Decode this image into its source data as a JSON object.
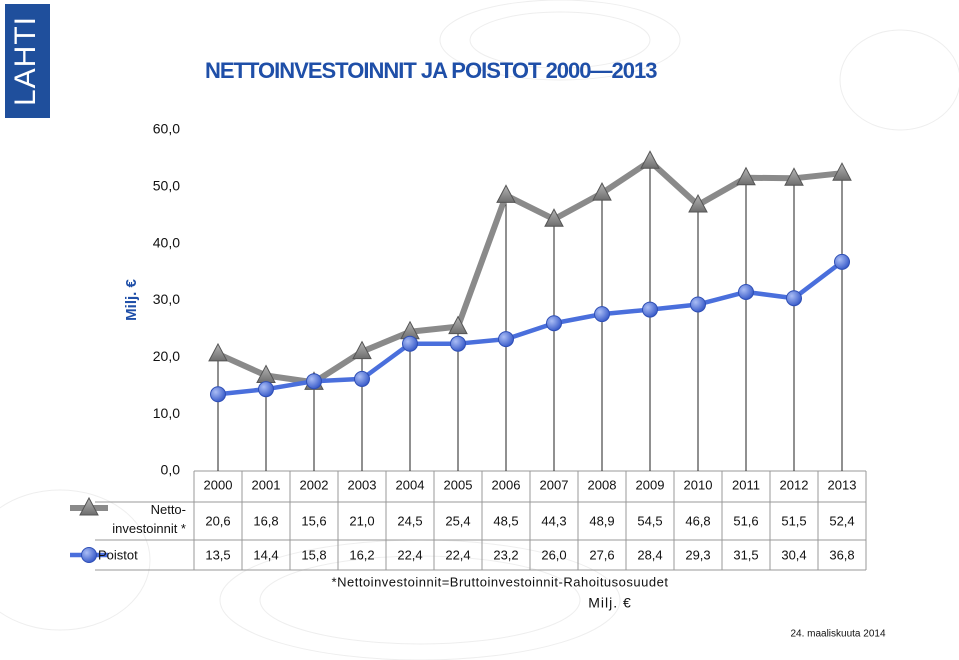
{
  "logo": "LAHTI",
  "date": "24. maaliskuuta 2014",
  "chart_data": {
    "type": "line",
    "title": "NETTOINVESTOINNIT JA POISTOT 2000—2013",
    "y_label": "Milj. €",
    "categories": [
      "2000",
      "2001",
      "2002",
      "2003",
      "2004",
      "2005",
      "2006",
      "2007",
      "2008",
      "2009",
      "2010",
      "2011",
      "2012",
      "2013"
    ],
    "series": [
      {
        "name": "Netto-investoinnit *",
        "color": "#8a8a8a",
        "marker": "triangle",
        "values": [
          20.6,
          16.8,
          15.6,
          21.0,
          24.5,
          25.4,
          48.5,
          44.3,
          48.9,
          54.5,
          46.8,
          51.6,
          51.5,
          52.4
        ],
        "value_labels": [
          "20,6",
          "16,8",
          "15,6",
          "21,0",
          "24,5",
          "25,4",
          "48,5",
          "44,3",
          "48,9",
          "54,5",
          "46,8",
          "51,6",
          "51,5",
          "52,4"
        ]
      },
      {
        "name": "Poistot",
        "color": "#4a6fdc",
        "marker": "circle",
        "values": [
          13.5,
          14.4,
          15.8,
          16.2,
          22.4,
          22.4,
          23.2,
          26.0,
          27.6,
          28.4,
          29.3,
          31.5,
          30.4,
          36.8
        ],
        "value_labels": [
          "13,5",
          "14,4",
          "15,8",
          "16,2",
          "22,4",
          "22,4",
          "23,2",
          "26,0",
          "27,6",
          "28,4",
          "29,3",
          "31,5",
          "30,4",
          "36,8"
        ]
      }
    ],
    "ylim": [
      0,
      60
    ],
    "yticks": [
      {
        "value": 0,
        "label": "0,0"
      },
      {
        "value": 10,
        "label": "10,0"
      },
      {
        "value": 20,
        "label": "20,0"
      },
      {
        "value": 30,
        "label": "30,0"
      },
      {
        "value": 40,
        "label": "40,0"
      },
      {
        "value": 50,
        "label": "50,0"
      },
      {
        "value": 60,
        "label": "60,0"
      }
    ],
    "grid": false,
    "footnote": "*Nettoinvestoinnit=Bruttoinvestoinnit-Rahoitusosuudet",
    "table_unit": "Milj. €"
  }
}
